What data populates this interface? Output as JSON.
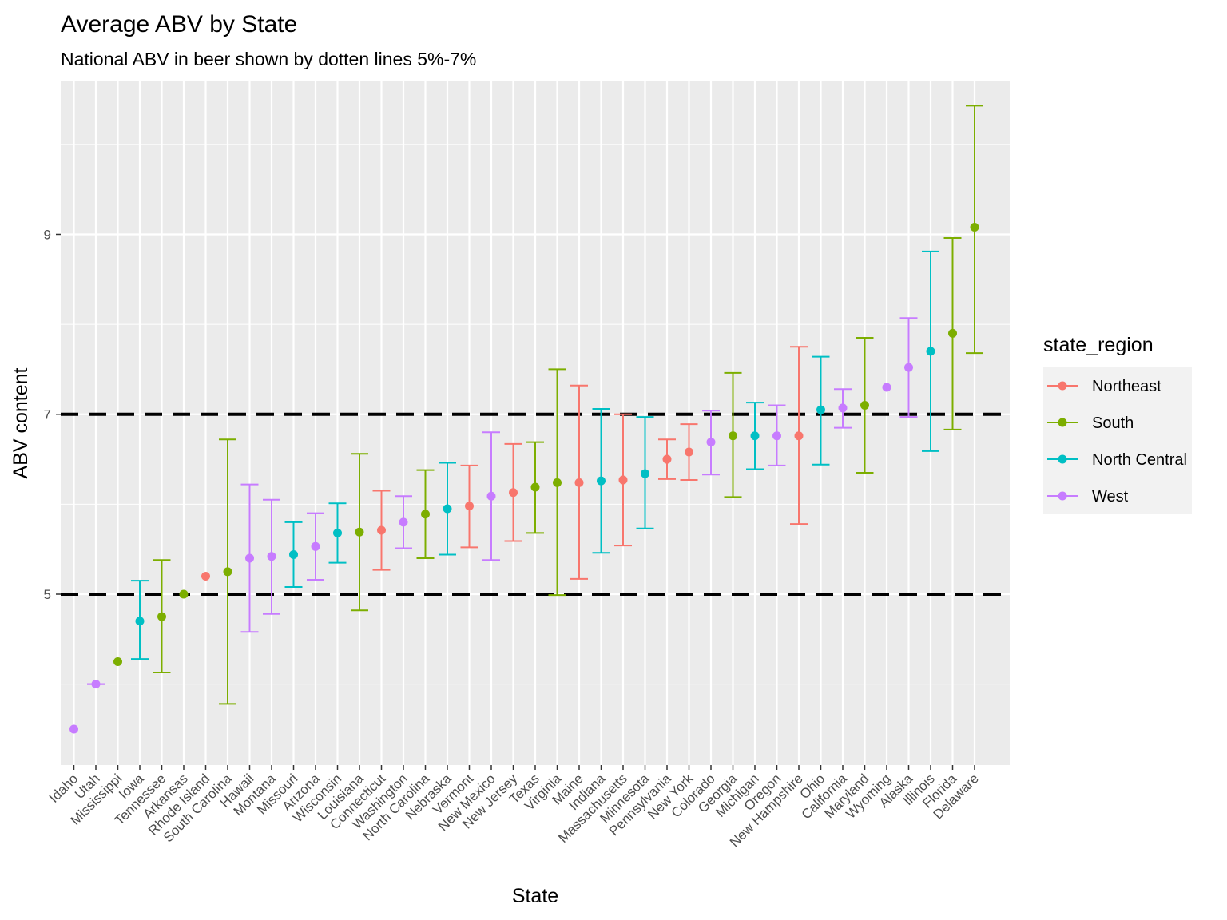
{
  "chart_data": {
    "type": "scatter",
    "title": "Average ABV by State",
    "subtitle": "National ABV in beer shown by dotten lines 5%-7%",
    "xlabel": "State",
    "ylabel": "ABV content",
    "ylim": [
      3.1,
      10.7
    ],
    "y_ticks": [
      5,
      7,
      9
    ],
    "reference_lines": [
      5,
      7
    ],
    "grid": true,
    "legend": {
      "title": "state_region",
      "position": "right",
      "items": [
        {
          "name": "Northeast",
          "color": "#F8766D"
        },
        {
          "name": "South",
          "color": "#7CAE00"
        },
        {
          "name": "North Central",
          "color": "#00BFC4"
        },
        {
          "name": "West",
          "color": "#C77CFF"
        }
      ]
    },
    "points": [
      {
        "state": "Idaho",
        "region": "West",
        "mean": 3.5,
        "low": null,
        "high": null
      },
      {
        "state": "Utah",
        "region": "West",
        "mean": 4.0,
        "low": 4.0,
        "high": 4.0
      },
      {
        "state": "Mississippi",
        "region": "South",
        "mean": 4.25,
        "low": null,
        "high": null
      },
      {
        "state": "Iowa",
        "region": "North Central",
        "mean": 4.7,
        "low": 4.28,
        "high": 5.15
      },
      {
        "state": "Tennessee",
        "region": "South",
        "mean": 4.75,
        "low": 4.13,
        "high": 5.38
      },
      {
        "state": "Arkansas",
        "region": "South",
        "mean": 5.0,
        "low": null,
        "high": null
      },
      {
        "state": "Rhode Island",
        "region": "Northeast",
        "mean": 5.2,
        "low": null,
        "high": null
      },
      {
        "state": "South Carolina",
        "region": "South",
        "mean": 5.25,
        "low": 3.78,
        "high": 6.72
      },
      {
        "state": "Hawaii",
        "region": "West",
        "mean": 5.4,
        "low": 4.58,
        "high": 6.22
      },
      {
        "state": "Montana",
        "region": "West",
        "mean": 5.42,
        "low": 4.78,
        "high": 6.05
      },
      {
        "state": "Missouri",
        "region": "North Central",
        "mean": 5.44,
        "low": 5.08,
        "high": 5.8
      },
      {
        "state": "Arizona",
        "region": "West",
        "mean": 5.53,
        "low": 5.16,
        "high": 5.9
      },
      {
        "state": "Wisconsin",
        "region": "North Central",
        "mean": 5.68,
        "low": 5.35,
        "high": 6.01
      },
      {
        "state": "Louisiana",
        "region": "South",
        "mean": 5.69,
        "low": 4.82,
        "high": 6.56
      },
      {
        "state": "Connecticut",
        "region": "Northeast",
        "mean": 5.71,
        "low": 5.27,
        "high": 6.15
      },
      {
        "state": "Washington",
        "region": "West",
        "mean": 5.8,
        "low": 5.51,
        "high": 6.09
      },
      {
        "state": "North Carolina",
        "region": "South",
        "mean": 5.89,
        "low": 5.4,
        "high": 6.38
      },
      {
        "state": "Nebraska",
        "region": "North Central",
        "mean": 5.95,
        "low": 5.44,
        "high": 6.46
      },
      {
        "state": "Vermont",
        "region": "Northeast",
        "mean": 5.98,
        "low": 5.52,
        "high": 6.43
      },
      {
        "state": "New Mexico",
        "region": "West",
        "mean": 6.09,
        "low": 5.38,
        "high": 6.8
      },
      {
        "state": "New Jersey",
        "region": "Northeast",
        "mean": 6.13,
        "low": 5.59,
        "high": 6.67
      },
      {
        "state": "Texas",
        "region": "South",
        "mean": 6.19,
        "low": 5.68,
        "high": 6.69
      },
      {
        "state": "Virginia",
        "region": "South",
        "mean": 6.24,
        "low": 4.99,
        "high": 7.5
      },
      {
        "state": "Maine",
        "region": "Northeast",
        "mean": 6.24,
        "low": 5.17,
        "high": 7.32
      },
      {
        "state": "Indiana",
        "region": "North Central",
        "mean": 6.26,
        "low": 5.46,
        "high": 7.06
      },
      {
        "state": "Massachusetts",
        "region": "Northeast",
        "mean": 6.27,
        "low": 5.54,
        "high": 7.0
      },
      {
        "state": "Minnesota",
        "region": "North Central",
        "mean": 6.34,
        "low": 5.73,
        "high": 6.97
      },
      {
        "state": "Pennsylvania",
        "region": "Northeast",
        "mean": 6.5,
        "low": 6.28,
        "high": 6.72
      },
      {
        "state": "New York",
        "region": "Northeast",
        "mean": 6.58,
        "low": 6.27,
        "high": 6.89
      },
      {
        "state": "Colorado",
        "region": "West",
        "mean": 6.69,
        "low": 6.33,
        "high": 7.04
      },
      {
        "state": "Georgia",
        "region": "South",
        "mean": 6.76,
        "low": 6.08,
        "high": 7.46
      },
      {
        "state": "Michigan",
        "region": "North Central",
        "mean": 6.76,
        "low": 6.39,
        "high": 7.13
      },
      {
        "state": "Oregon",
        "region": "West",
        "mean": 6.76,
        "low": 6.43,
        "high": 7.1
      },
      {
        "state": "New Hampshire",
        "region": "Northeast",
        "mean": 6.76,
        "low": 5.78,
        "high": 7.75
      },
      {
        "state": "Ohio",
        "region": "North Central",
        "mean": 7.05,
        "low": 6.44,
        "high": 7.64
      },
      {
        "state": "California",
        "region": "West",
        "mean": 7.07,
        "low": 6.85,
        "high": 7.28
      },
      {
        "state": "Maryland",
        "region": "South",
        "mean": 7.1,
        "low": 6.35,
        "high": 7.85
      },
      {
        "state": "Wyoming",
        "region": "West",
        "mean": 7.3,
        "low": null,
        "high": null
      },
      {
        "state": "Alaska",
        "region": "West",
        "mean": 7.52,
        "low": 6.97,
        "high": 8.07
      },
      {
        "state": "Illinois",
        "region": "North Central",
        "mean": 7.7,
        "low": 6.59,
        "high": 8.81
      },
      {
        "state": "Florida",
        "region": "South",
        "mean": 7.9,
        "low": 6.83,
        "high": 8.96
      },
      {
        "state": "Delaware",
        "region": "South",
        "mean": 9.08,
        "low": 7.68,
        "high": 10.43
      }
    ]
  }
}
